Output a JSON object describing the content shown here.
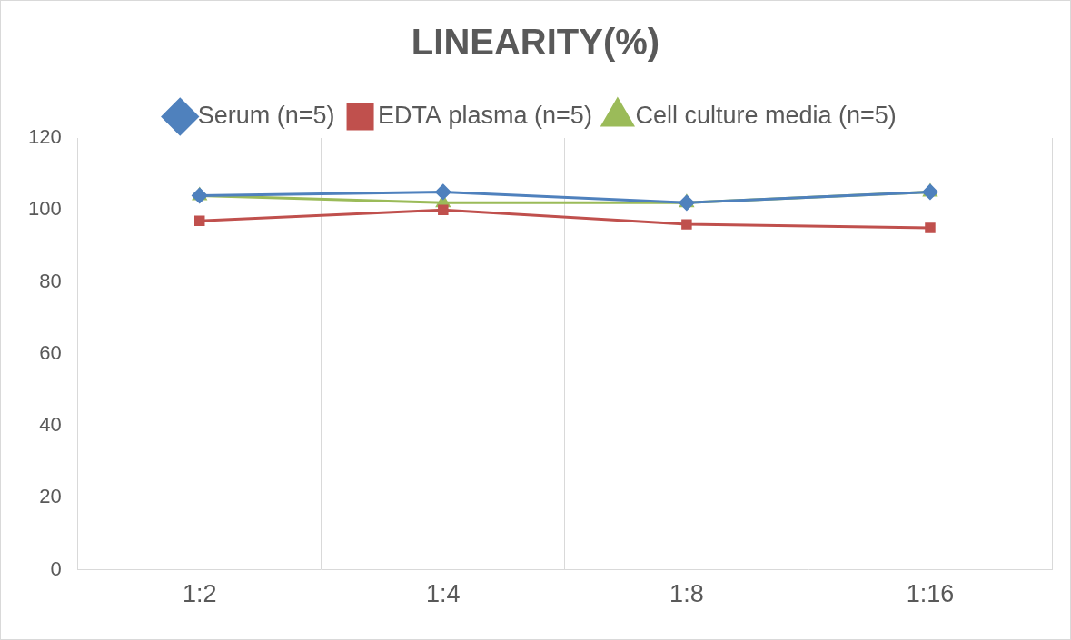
{
  "chart_data": {
    "type": "line",
    "title": "LINEARITY(%)",
    "categories": [
      "1:2",
      "1:4",
      "1:8",
      "1:16"
    ],
    "series": [
      {
        "name": "Serum (n=5)",
        "color": "#4f81bd",
        "marker": "diamond",
        "values": [
          104,
          105,
          102,
          105
        ]
      },
      {
        "name": "EDTA plasma (n=5)",
        "color": "#c0504d",
        "marker": "square",
        "values": [
          97,
          100,
          96,
          95
        ]
      },
      {
        "name": "Cell culture media (n=5)",
        "color": "#9bbb59",
        "marker": "triangle",
        "values": [
          104,
          102,
          102,
          105
        ]
      }
    ],
    "ylim": [
      0,
      120
    ],
    "yticks": [
      0,
      20,
      40,
      60,
      80,
      100,
      120
    ],
    "grid": true,
    "legend": "top"
  }
}
